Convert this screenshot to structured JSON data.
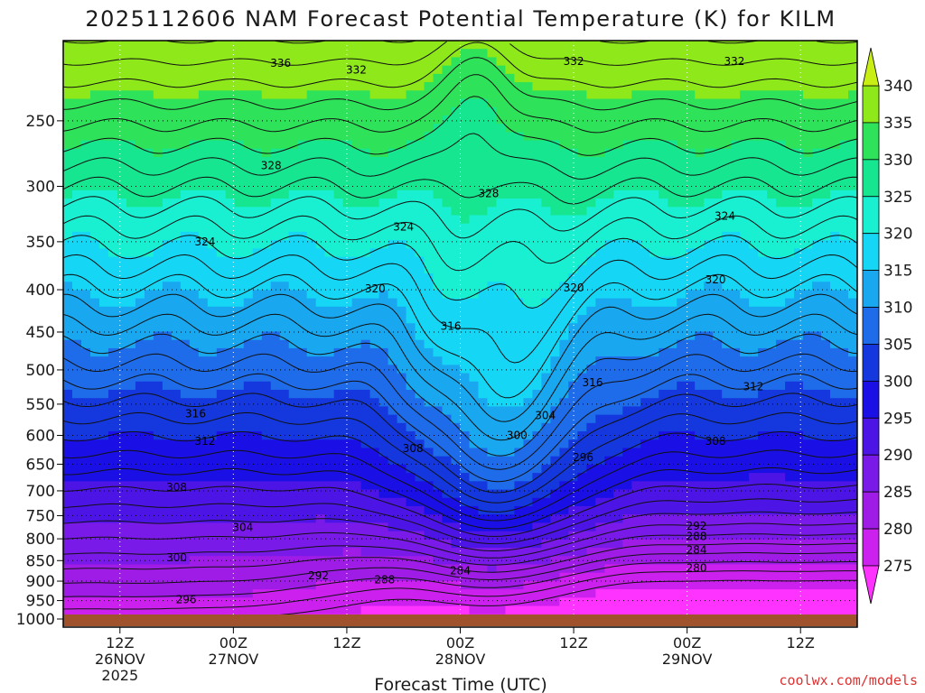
{
  "chart_data": {
    "type": "heatmap",
    "title": "2025112606 NAM Forecast Potential Temperature (K) for KILM",
    "xlabel": "Forecast Time (UTC)",
    "ylabel": "",
    "y_scale": "log",
    "y_inverted": true,
    "y_ticks": [
      250,
      300,
      350,
      400,
      450,
      500,
      550,
      600,
      650,
      700,
      750,
      800,
      850,
      900,
      950,
      1000
    ],
    "ylim": [
      1000,
      200
    ],
    "x_ticks": [
      {
        "hour": 6,
        "line1": "12Z",
        "line2": "26NOV",
        "line3": "2025"
      },
      {
        "hour": 18,
        "line1": "00Z",
        "line2": "27NOV",
        "line3": ""
      },
      {
        "hour": 30,
        "line1": "12Z",
        "line2": "",
        "line3": ""
      },
      {
        "hour": 42,
        "line1": "00Z",
        "line2": "28NOV",
        "line3": ""
      },
      {
        "hour": 54,
        "line1": "12Z",
        "line2": "",
        "line3": ""
      },
      {
        "hour": 66,
        "line1": "00Z",
        "line2": "29NOV",
        "line3": ""
      },
      {
        "hour": 78,
        "line1": "12Z",
        "line2": "",
        "line3": ""
      }
    ],
    "xlim": [
      0,
      84
    ],
    "grid": true,
    "colorbar": {
      "levels": [
        275,
        280,
        285,
        290,
        295,
        300,
        305,
        310,
        315,
        320,
        325,
        330,
        335,
        340
      ],
      "colors": [
        "#ff33ff",
        "#cc20ee",
        "#9e1ce6",
        "#7a1ae8",
        "#4d14e6",
        "#1a10e6",
        "#1438dd",
        "#1f6cea",
        "#19a8f0",
        "#16d6f5",
        "#19f0d2",
        "#17e690",
        "#2ee35a",
        "#8ee81a",
        "#c8ee14"
      ],
      "extend": "both"
    },
    "contour_interval": 2,
    "contour_labels": [
      {
        "value": 336,
        "hour": 23,
        "p": 213
      },
      {
        "value": 332,
        "hour": 31,
        "p": 217
      },
      {
        "value": 332,
        "hour": 54,
        "p": 212
      },
      {
        "value": 332,
        "hour": 71,
        "p": 212
      },
      {
        "value": 328,
        "hour": 22,
        "p": 283
      },
      {
        "value": 328,
        "hour": 45,
        "p": 306
      },
      {
        "value": 324,
        "hour": 15,
        "p": 350
      },
      {
        "value": 324,
        "hour": 36,
        "p": 336
      },
      {
        "value": 324,
        "hour": 70,
        "p": 326
      },
      {
        "value": 320,
        "hour": 33,
        "p": 399
      },
      {
        "value": 320,
        "hour": 54,
        "p": 398
      },
      {
        "value": 320,
        "hour": 69,
        "p": 389
      },
      {
        "value": 316,
        "hour": 41,
        "p": 443
      },
      {
        "value": 316,
        "hour": 56,
        "p": 518
      },
      {
        "value": 316,
        "hour": 14,
        "p": 565
      },
      {
        "value": 312,
        "hour": 73,
        "p": 524
      },
      {
        "value": 312,
        "hour": 15,
        "p": 610
      },
      {
        "value": 308,
        "hour": 69,
        "p": 610
      },
      {
        "value": 308,
        "hour": 37,
        "p": 622
      },
      {
        "value": 308,
        "hour": 12,
        "p": 693
      },
      {
        "value": 304,
        "hour": 51,
        "p": 568
      },
      {
        "value": 304,
        "hour": 19,
        "p": 775
      },
      {
        "value": 300,
        "hour": 48,
        "p": 600
      },
      {
        "value": 300,
        "hour": 12,
        "p": 843
      },
      {
        "value": 296,
        "hour": 55,
        "p": 638
      },
      {
        "value": 296,
        "hour": 13,
        "p": 948
      },
      {
        "value": 292,
        "hour": 67,
        "p": 772
      },
      {
        "value": 292,
        "hour": 27,
        "p": 887
      },
      {
        "value": 288,
        "hour": 67,
        "p": 795
      },
      {
        "value": 288,
        "hour": 34,
        "p": 897
      },
      {
        "value": 284,
        "hour": 67,
        "p": 825
      },
      {
        "value": 284,
        "hour": 42,
        "p": 874
      },
      {
        "value": 280,
        "hour": 67,
        "p": 868
      }
    ],
    "notes": "Potential temperature field with warm (green/yellow) values aloft and cold (magenta) values near the surface; a pronounced warm intrusion near 00Z 28NOV to 12Z 28NOV."
  },
  "credit": "coolwx.com/models",
  "ground_color": "#a0522d"
}
